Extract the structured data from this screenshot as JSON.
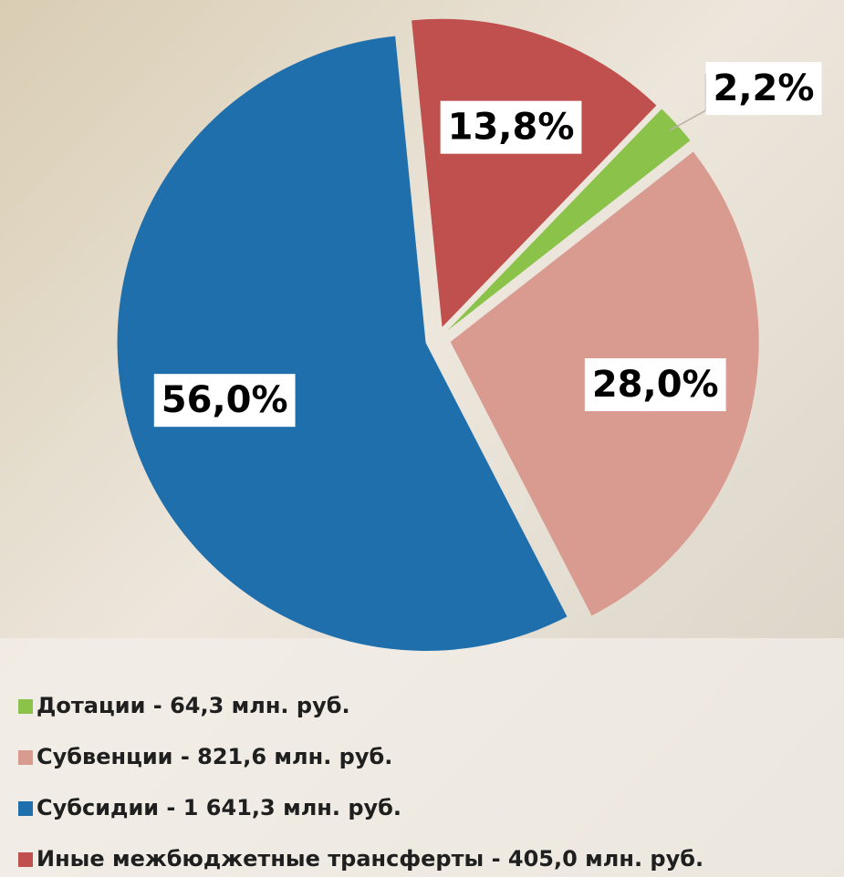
{
  "chart_data": {
    "type": "pie",
    "categories": [
      "Дотации - 64,3 млн. руб.",
      "Субвенции - 821,6 млн. руб.",
      "Субсидии - 1 641,3 млн. руб.",
      "Иные межбюджетные трансферты - 405,0 млн. руб."
    ],
    "values": [
      2.2,
      28.0,
      56.0,
      13.8
    ],
    "value_labels": [
      "2,2%",
      "28,0%",
      "56,0%",
      "13,8%"
    ],
    "colors": [
      "#8bc34a",
      "#d99a90",
      "#1f6fad",
      "#c0504d"
    ],
    "legend": "bottom-left"
  }
}
